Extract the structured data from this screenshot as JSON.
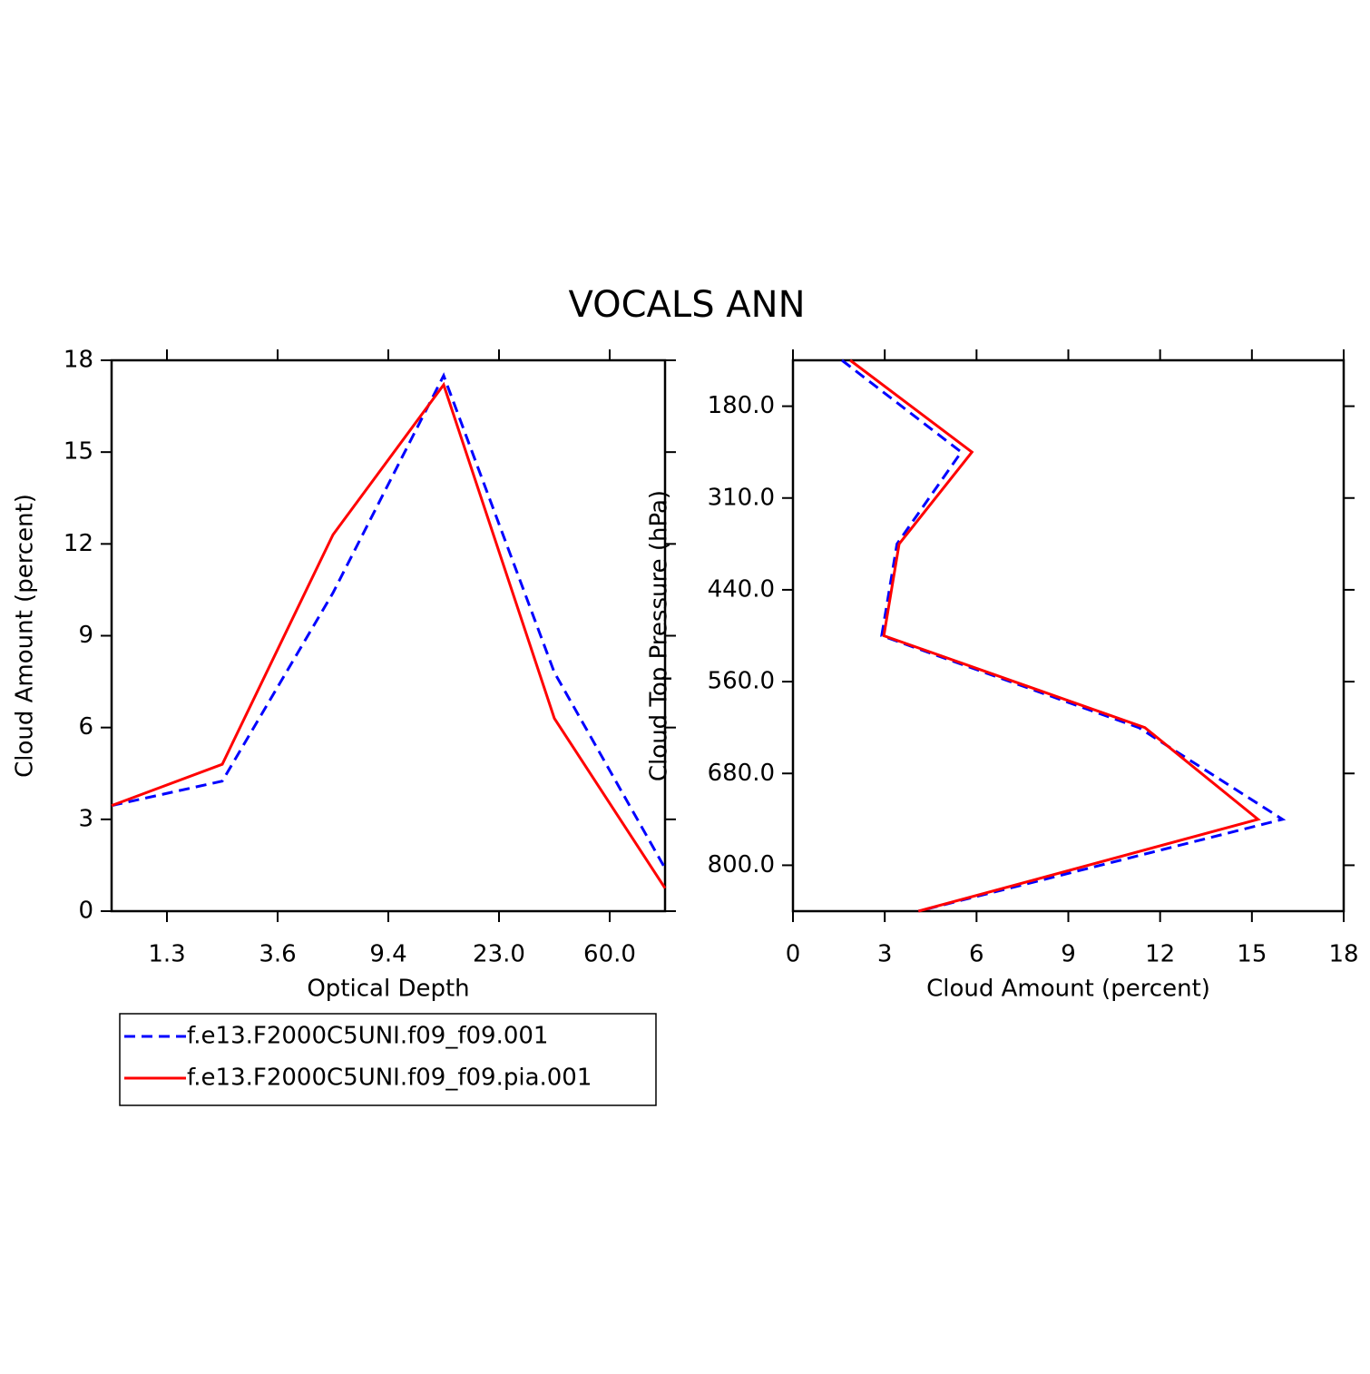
{
  "title": "VOCALS ANN",
  "legend": "below",
  "chart_data": [
    {
      "type": "line",
      "xlabel": "Optical Depth",
      "ylabel": "Cloud Amount (percent)",
      "x": [
        0,
        1,
        2,
        3,
        4,
        5
      ],
      "xlim": [
        0,
        5
      ],
      "xticks": [
        {
          "value": 0.5,
          "label": "1.3"
        },
        {
          "value": 1.5,
          "label": "3.6"
        },
        {
          "value": 2.5,
          "label": "9.4"
        },
        {
          "value": 3.5,
          "label": "23.0"
        },
        {
          "value": 4.5,
          "label": "60.0"
        }
      ],
      "ylim": [
        0,
        18
      ],
      "yticks": [
        0,
        3,
        6,
        9,
        12,
        15,
        18
      ],
      "series": [
        {
          "name": "f.e13.F2000C5UNI.f09_f09.001",
          "color": "#0000ff",
          "dash": true,
          "values": [
            3.45,
            4.25,
            10.4,
            17.5,
            7.8,
            1.4
          ]
        },
        {
          "name": "f.e13.F2000C5UNI.f09_f09.pia.001",
          "color": "#ff0000",
          "dash": false,
          "values": [
            3.45,
            4.8,
            12.3,
            17.2,
            6.3,
            0.75
          ]
        }
      ]
    },
    {
      "type": "line",
      "orientation": "horizontal",
      "xlabel": "Cloud Amount (percent)",
      "ylabel": "Cloud Top Pressure (hPa)",
      "y": [
        0,
        1,
        2,
        3,
        4,
        5,
        6
      ],
      "ylim": [
        6,
        0
      ],
      "yticks": [
        {
          "value": 0.5,
          "label": "180.0"
        },
        {
          "value": 1.5,
          "label": "310.0"
        },
        {
          "value": 2.5,
          "label": "440.0"
        },
        {
          "value": 3.5,
          "label": "560.0"
        },
        {
          "value": 4.5,
          "label": "680.0"
        },
        {
          "value": 5.5,
          "label": "800.0"
        }
      ],
      "xlim": [
        0,
        18
      ],
      "xticks": [
        0,
        3,
        6,
        9,
        12,
        15,
        18
      ],
      "series": [
        {
          "color": "#0000ff",
          "dash": true,
          "values": [
            1.6,
            5.5,
            3.4,
            2.9,
            11.3,
            16.0,
            4.1
          ]
        },
        {
          "color": "#ff0000",
          "dash": false,
          "values": [
            1.87,
            5.85,
            3.47,
            2.97,
            11.5,
            15.2,
            4.1
          ]
        }
      ]
    }
  ]
}
